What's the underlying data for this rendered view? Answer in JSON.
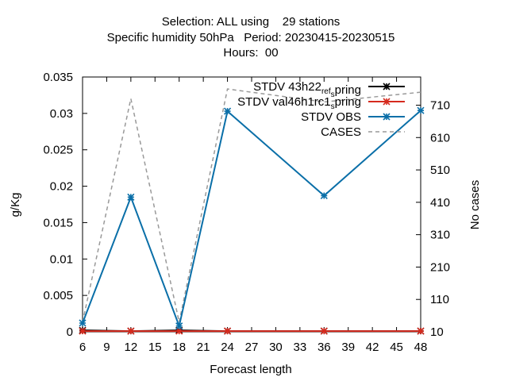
{
  "chart_data": {
    "type": "line",
    "title_lines": [
      "Selection: ALL using    29 stations",
      "Specific humidity 50hPa   Period: 20230415-20230515",
      "Hours:  00"
    ],
    "xlabel": "Forecast length",
    "ylabel": "g/Kg",
    "y2label": "No cases",
    "x_ticks": [
      6,
      9,
      12,
      15,
      18,
      21,
      24,
      27,
      30,
      33,
      36,
      39,
      42,
      45,
      48
    ],
    "xlim": [
      6,
      48
    ],
    "y_ticks": [
      "0",
      "0.005",
      "0.01",
      "0.015",
      "0.02",
      "0.025",
      "0.03",
      "0.035"
    ],
    "ylim": [
      0,
      0.035
    ],
    "y2_ticks": [
      10,
      110,
      210,
      310,
      410,
      510,
      610,
      710
    ],
    "y2lim": [
      10,
      797
    ],
    "legend_position": "top-right",
    "grid": false,
    "series": [
      {
        "name": "STDV 43h22_ref_spring",
        "legend_main": "STDV 43h22",
        "legend_sub": "ref",
        "legend_tail_pre": "",
        "legend_tail_sub": "s",
        "legend_tail_post": "pring",
        "color": "#000000",
        "axis": "y",
        "style": "solid",
        "marker": "star",
        "x": [
          6,
          12,
          18,
          24,
          36,
          48
        ],
        "values": [
          0.0002,
          0.0001,
          0.0002,
          0.0001,
          0.0001,
          0.0001
        ]
      },
      {
        "name": "STDV val46h1rc1_spring",
        "legend_main": "STDV val46h1rc1",
        "legend_sub": "",
        "legend_tail_pre": "",
        "legend_tail_sub": "s",
        "legend_tail_post": "pring",
        "color": "#d62a1e",
        "axis": "y",
        "style": "solid",
        "marker": "star",
        "x": [
          6,
          12,
          18,
          24,
          36,
          48
        ],
        "values": [
          0.0001,
          0.0001,
          0.0001,
          0.0001,
          0.0001,
          0.0001
        ]
      },
      {
        "name": "STDV OBS",
        "legend_main": "STDV OBS",
        "color": "#0a6fa8",
        "axis": "y",
        "style": "solid",
        "marker": "star",
        "x": [
          6,
          12,
          18,
          24,
          36,
          48
        ],
        "values": [
          0.0012,
          0.0185,
          0.0008,
          0.0303,
          0.0187,
          0.0304
        ]
      },
      {
        "name": "CASES",
        "legend_main": "CASES",
        "color": "#999999",
        "axis": "y2",
        "style": "dashed",
        "marker": "none",
        "x": [
          6,
          12,
          18,
          24,
          36,
          48
        ],
        "values": [
          40,
          730,
          40,
          760,
          720,
          750
        ]
      }
    ]
  }
}
